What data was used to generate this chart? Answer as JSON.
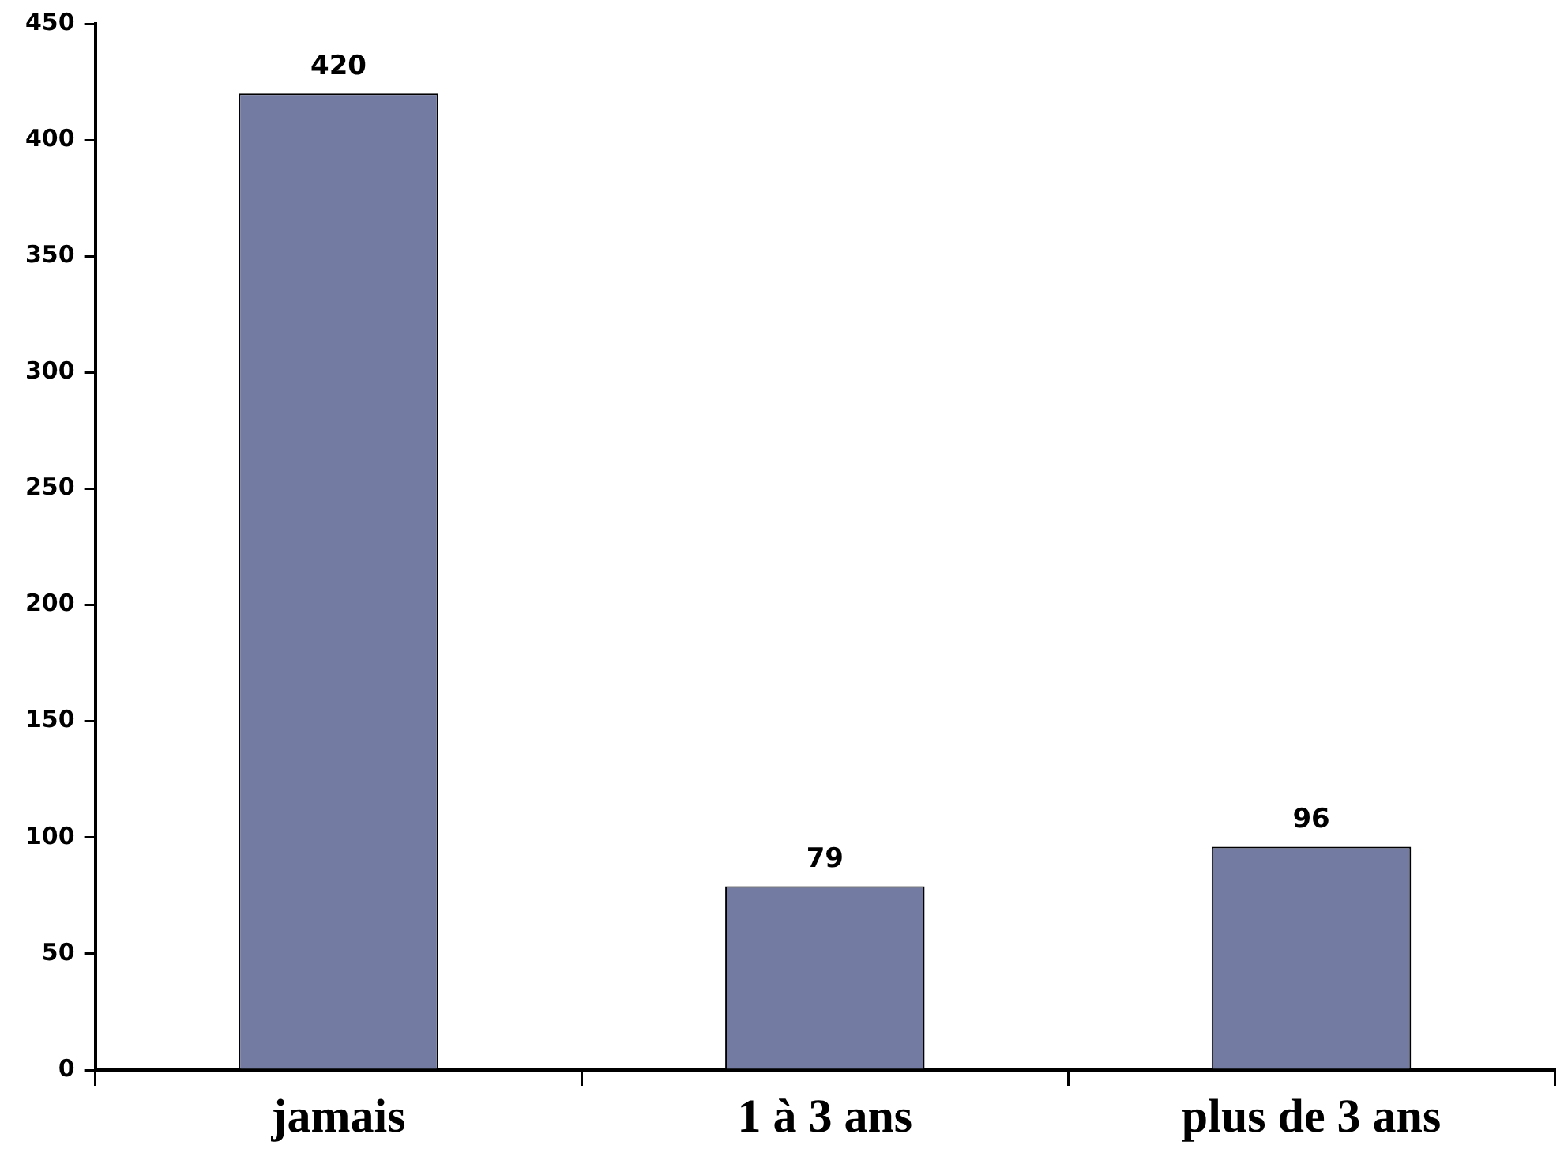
{
  "chart_data": {
    "type": "bar",
    "categories": [
      "jamais",
      "1 à 3 ans",
      "plus de 3 ans"
    ],
    "values": [
      420,
      79,
      96
    ],
    "color": "#737ba3",
    "ylim": [
      0,
      450
    ],
    "yticks": [
      0,
      50,
      100,
      150,
      200,
      250,
      300,
      350,
      400,
      450
    ],
    "grid": false,
    "legend": false,
    "data_labels": true
  }
}
